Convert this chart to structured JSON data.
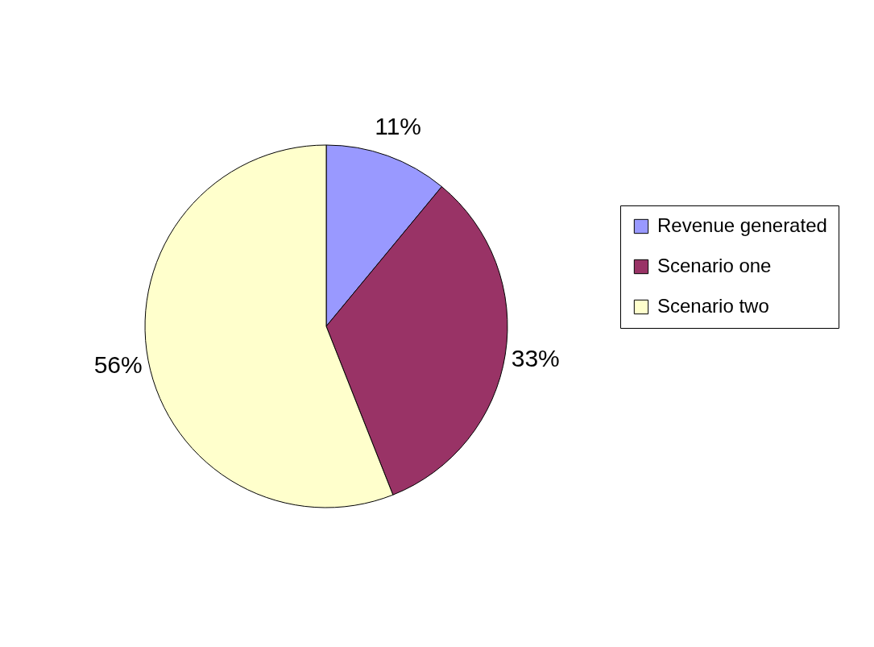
{
  "chart_data": {
    "type": "pie",
    "categories": [
      "Revenue generated",
      "Scenario one",
      "Scenario two"
    ],
    "values": [
      11,
      33,
      56
    ],
    "colors": [
      "#9999ff",
      "#993366",
      "#ffffcc"
    ],
    "value_labels": [
      "11%",
      "33%",
      "56%"
    ],
    "legend": "right"
  }
}
